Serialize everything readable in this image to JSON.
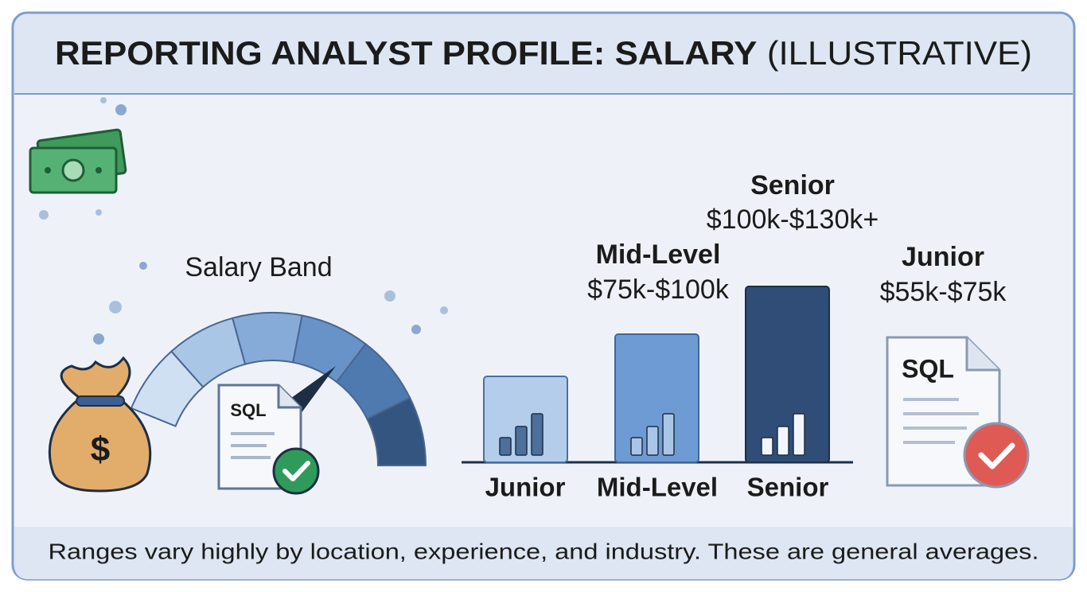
{
  "header": {
    "title": "REPORTING ANALYST PROFILE: SALARY",
    "qualifier": "(ILLUSTRATIVE)"
  },
  "gauge": {
    "label": "Salary Band",
    "badge": "SQL"
  },
  "bars": {
    "labels": [
      "Junior",
      "Mid-Level",
      "Senior"
    ]
  },
  "callouts": [
    {
      "name": "Mid-Level",
      "range": "$75k-$100k"
    },
    {
      "name": "Senior",
      "range": "$100k-$130k+"
    },
    {
      "name": "Junior",
      "range": "$55k-$75k"
    }
  ],
  "document": {
    "badge": "SQL"
  },
  "footer": {
    "note": "Ranges vary highly by location, experience, and industry. These are general averages."
  }
}
